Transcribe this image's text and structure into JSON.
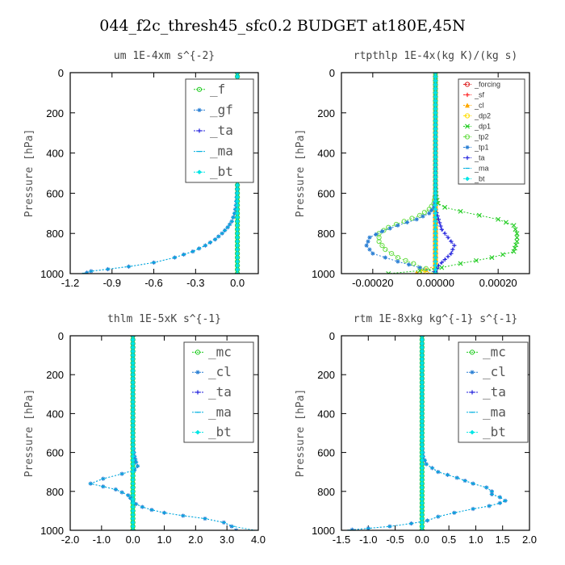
{
  "figure_title": "044_f2c_thresh45_sfc0.2  BUDGET at180E,45N",
  "colors": {
    "f": "#22cc22",
    "gf": "#2a7fd4",
    "ta": "#2222dd",
    "ma": "#00b0e0",
    "bt": "#00e5e5",
    "mc": "#22cc22",
    "cl": "#2a7fd4",
    "forcing": "#dd2222",
    "sf": "#ff2222",
    "cl_small": "#ffaa00",
    "dp2": "#ffdd00",
    "dp1": "#22cc22",
    "tp2": "#66dd44",
    "tp1": "#2a7fd4"
  },
  "chart_data": [
    {
      "type": "line",
      "title": "um  1E-4xm s^{-2}",
      "ylabel": "Pressure [hPa]",
      "xlim": [
        -1.2,
        0.15
      ],
      "ylim": [
        1000,
        0
      ],
      "xticks": [
        -1.2,
        -0.9,
        -0.6,
        -0.3,
        0.0
      ],
      "xtick_labels": [
        "-1.2",
        "-0.9",
        "-0.6",
        "-0.3",
        "0.0"
      ],
      "yticks": [
        0,
        200,
        400,
        600,
        800,
        1000
      ],
      "ytick_labels": [
        "0",
        "200",
        "400",
        "600",
        "800",
        "1000"
      ],
      "legend": [
        "_f",
        "_gf",
        "_ta",
        "_ma",
        "_bt"
      ],
      "series": [
        {
          "name": "_f",
          "key": "f",
          "x": [
            0.0,
            0.0
          ],
          "y": [
            0,
            1000
          ]
        },
        {
          "name": "_gf",
          "key": "gf",
          "x": [
            0.0,
            0.0,
            -0.005,
            -0.01,
            -0.02,
            -0.04,
            -0.07,
            -0.11,
            -0.16,
            -0.23,
            -0.32,
            -0.45,
            -0.6,
            -0.78,
            -0.93,
            -1.05,
            -1.08
          ],
          "y": [
            0,
            560,
            620,
            660,
            700,
            740,
            770,
            800,
            830,
            860,
            890,
            920,
            945,
            965,
            978,
            988,
            995
          ]
        },
        {
          "name": "_ta",
          "key": "ta",
          "x": [
            0.0,
            0.0,
            0.0
          ],
          "y": [
            0,
            500,
            1000
          ]
        },
        {
          "name": "_ma",
          "key": "ma",
          "x": [
            0.0,
            0.0,
            -0.005,
            -0.01,
            -0.02,
            -0.04,
            -0.07,
            -0.11,
            -0.16,
            -0.23,
            -0.32,
            -0.45,
            -0.6,
            -0.78,
            -0.93,
            -1.05,
            -1.1
          ],
          "y": [
            0,
            560,
            620,
            660,
            700,
            740,
            770,
            800,
            830,
            860,
            890,
            920,
            945,
            965,
            978,
            988,
            998
          ]
        },
        {
          "name": "_bt",
          "key": "bt",
          "x": [
            0.0,
            0.0
          ],
          "y": [
            0,
            1000
          ]
        }
      ]
    },
    {
      "type": "line",
      "title": "rtpthlp  1E-4x(kg K)/(kg s)",
      "ylabel": "Pressure [hPa]",
      "xlim": [
        -0.0003,
        0.0003
      ],
      "ylim": [
        1000,
        0
      ],
      "xticks": [
        -0.0002,
        0.0,
        0.0002
      ],
      "xtick_labels": [
        "-0.00020",
        "0.00000",
        "0.00020"
      ],
      "yticks": [
        0,
        200,
        400,
        600,
        800,
        1000
      ],
      "ytick_labels": [
        "0",
        "200",
        "400",
        "600",
        "800",
        "1000"
      ],
      "legend": [
        "_forcing",
        "_sf",
        "_cl",
        "_dp2",
        "_dp1",
        "_tp2",
        "_tp1",
        "_ta",
        "_ma",
        "_bt"
      ],
      "series": [
        {
          "name": "_forcing",
          "key": "forcing",
          "x": [
            0.0,
            0.0
          ],
          "y": [
            0,
            1000
          ]
        },
        {
          "name": "_sf",
          "key": "sf",
          "x": [
            0.0,
            0.0
          ],
          "y": [
            0,
            1000
          ]
        },
        {
          "name": "_cl",
          "key": "cl_small",
          "x": [
            0.0,
            0.0,
            -3e-05,
            -6e-05,
            0.0
          ],
          "y": [
            0,
            960,
            980,
            995,
            1000
          ]
        },
        {
          "name": "_dp2",
          "key": "dp2",
          "x": [
            0.0,
            0.0,
            -4e-05,
            0.0
          ],
          "y": [
            0,
            970,
            990,
            1000
          ]
        },
        {
          "name": "_dp1",
          "key": "dp1",
          "x": [
            0.0,
            0.0,
            3e-06,
            8e-06,
            3e-05,
            8e-05,
            0.00014,
            0.0002,
            0.00025,
            0.00026,
            0.00026,
            0.00025,
            0.00018,
            8e-05,
            2e-05,
            -5e-05,
            -0.00015
          ],
          "y": [
            0,
            550,
            620,
            650,
            670,
            690,
            710,
            730,
            760,
            800,
            840,
            890,
            920,
            950,
            970,
            985,
            1000
          ]
        },
        {
          "name": "_tp2",
          "key": "tp2",
          "x": [
            0.0,
            0.0,
            -5e-06,
            -2e-05,
            -5e-05,
            -0.0001,
            -0.00015,
            -0.00018,
            -0.00018,
            -0.00016,
            -0.00012,
            -7e-05,
            -3e-05,
            0.0
          ],
          "y": [
            0,
            600,
            650,
            680,
            710,
            740,
            770,
            800,
            840,
            880,
            920,
            950,
            975,
            995
          ]
        },
        {
          "name": "_tp1",
          "key": "tp1",
          "x": [
            0.0,
            0.0,
            -5e-06,
            -2e-05,
            -6e-05,
            -0.00012,
            -0.00017,
            -0.00021,
            -0.00022,
            -0.0002,
            -0.00012,
            -5e-05,
            0.0
          ],
          "y": [
            0,
            630,
            670,
            700,
            730,
            760,
            790,
            820,
            860,
            900,
            940,
            970,
            995
          ]
        },
        {
          "name": "_ta",
          "key": "ta",
          "x": [
            0.0,
            0.0,
            0.0,
            1e-05,
            2e-05,
            4e-05,
            6e-05,
            5e-05,
            3e-05,
            1e-05,
            0.0
          ],
          "y": [
            0,
            640,
            680,
            730,
            780,
            820,
            860,
            900,
            930,
            960,
            990
          ]
        },
        {
          "name": "_ma",
          "key": "ma",
          "x": [
            0.0,
            0.0
          ],
          "y": [
            0,
            1000
          ]
        },
        {
          "name": "_bt",
          "key": "bt",
          "x": [
            0.0,
            0.0
          ],
          "y": [
            0,
            1000
          ]
        }
      ]
    },
    {
      "type": "line",
      "title": "thlm  1E-5xK s^{-1}",
      "ylabel": "Pressure [hPa]",
      "xlim": [
        -2.0,
        4.0
      ],
      "ylim": [
        1000,
        0
      ],
      "xticks": [
        -2.0,
        -1.0,
        0.0,
        1.0,
        2.0,
        3.0,
        4.0
      ],
      "xtick_labels": [
        "-2.0",
        "-1.0",
        "0.0",
        "1.0",
        "2.0",
        "3.0",
        "4.0"
      ],
      "yticks": [
        0,
        200,
        400,
        600,
        800,
        1000
      ],
      "ytick_labels": [
        "0",
        "200",
        "400",
        "600",
        "800",
        "1000"
      ],
      "legend": [
        "_mc",
        "_cl",
        "_ta",
        "_ma",
        "_bt"
      ],
      "series": [
        {
          "name": "_mc",
          "key": "mc",
          "x": [
            0.0,
            0.0
          ],
          "y": [
            0,
            1000
          ]
        },
        {
          "name": "_cl",
          "key": "cl",
          "x": [
            0.0,
            0.0,
            0.05,
            0.1,
            0.15,
            0.05,
            -0.35,
            -0.95,
            -1.35,
            -0.55,
            -0.15,
            0.0,
            0.1,
            0.3,
            0.6,
            1.0,
            1.6,
            2.3,
            2.9,
            3.15,
            3.3
          ],
          "y": [
            0,
            560,
            620,
            650,
            670,
            690,
            710,
            735,
            760,
            790,
            820,
            850,
            865,
            880,
            895,
            910,
            925,
            940,
            960,
            980,
            1000
          ]
        },
        {
          "name": "_ta",
          "key": "ta",
          "x": [
            0.0,
            0.0
          ],
          "y": [
            0,
            1000
          ]
        },
        {
          "name": "_ma",
          "key": "ma",
          "x": [
            0.0,
            0.0,
            0.05,
            0.1,
            0.15,
            0.05,
            -0.35,
            -0.95,
            -1.35,
            -0.55,
            -0.15,
            0.0,
            0.1,
            0.3,
            0.6,
            1.0,
            1.6,
            2.3,
            2.9,
            3.2,
            3.9
          ],
          "y": [
            0,
            560,
            620,
            650,
            670,
            690,
            710,
            735,
            760,
            790,
            820,
            850,
            865,
            880,
            895,
            910,
            925,
            940,
            960,
            980,
            1000
          ]
        },
        {
          "name": "_bt",
          "key": "bt",
          "x": [
            0.0,
            0.0
          ],
          "y": [
            0,
            1000
          ]
        }
      ]
    },
    {
      "type": "line",
      "title": "rtm  1E-8xkg kg^{-1} s^{-1}",
      "ylabel": "Pressure [hPa]",
      "xlim": [
        -1.5,
        2.0
      ],
      "ylim": [
        1000,
        0
      ],
      "xticks": [
        -1.5,
        -1.0,
        -0.5,
        0.0,
        0.5,
        1.0,
        1.5,
        2.0
      ],
      "xtick_labels": [
        "-1.5",
        "-1.0",
        "-0.5",
        "0.0",
        "0.5",
        "1.0",
        "1.5",
        "2.0"
      ],
      "yticks": [
        0,
        200,
        400,
        600,
        800,
        1000
      ],
      "ytick_labels": [
        "0",
        "200",
        "400",
        "600",
        "800",
        "1000"
      ],
      "legend": [
        "_mc",
        "_cl",
        "_ta",
        "_ma",
        "_bt"
      ],
      "series": [
        {
          "name": "_mc",
          "key": "mc",
          "x": [
            0.0,
            0.0
          ],
          "y": [
            0,
            1000
          ]
        },
        {
          "name": "_cl",
          "key": "cl",
          "x": [
            0.0,
            0.0,
            0.02,
            0.08,
            0.3,
            0.65,
            0.95,
            1.2,
            1.3,
            1.3,
            1.45,
            1.55,
            1.45,
            1.25,
            0.95,
            0.6,
            0.3,
            0.1,
            -0.2,
            -0.6,
            -1.0,
            -1.3
          ],
          "y": [
            0,
            560,
            620,
            660,
            700,
            730,
            760,
            780,
            800,
            815,
            830,
            848,
            860,
            875,
            890,
            910,
            930,
            950,
            965,
            980,
            990,
            997
          ]
        },
        {
          "name": "_ta",
          "key": "ta",
          "x": [
            0.0,
            0.0
          ],
          "y": [
            0,
            1000
          ]
        },
        {
          "name": "_ma",
          "key": "ma",
          "x": [
            0.0,
            0.0,
            0.02,
            0.08,
            0.3,
            0.65,
            0.95,
            1.2,
            1.3,
            1.3,
            1.45,
            1.55,
            1.45,
            1.25,
            0.95,
            0.6,
            0.3,
            0.1,
            -0.2,
            -0.6,
            -1.0,
            -1.35
          ],
          "y": [
            0,
            560,
            620,
            660,
            700,
            730,
            760,
            780,
            800,
            815,
            830,
            848,
            860,
            875,
            890,
            910,
            930,
            950,
            965,
            980,
            990,
            999
          ]
        },
        {
          "name": "_bt",
          "key": "bt",
          "x": [
            0.0,
            0.0
          ],
          "y": [
            0,
            1000
          ]
        }
      ]
    }
  ]
}
